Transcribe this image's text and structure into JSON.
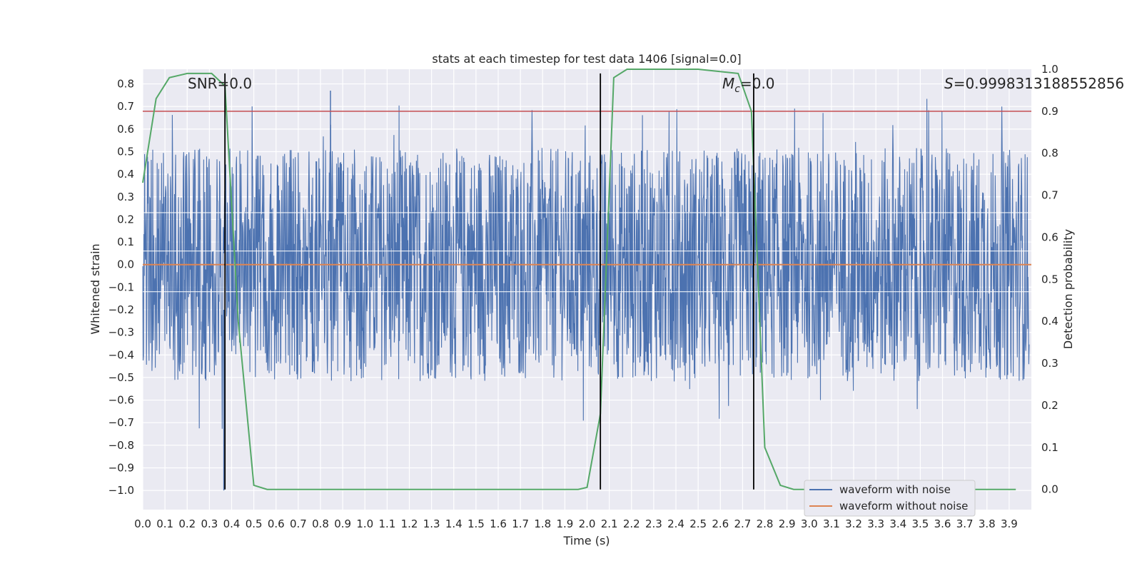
{
  "chart_data": {
    "type": "line",
    "title": "stats at each timestep for test data 1406 [signal=0.0]",
    "xlabel": "Time (s)",
    "ylabel": "Whitened strain",
    "y2label": "Detection probability",
    "xlim": [
      0.0,
      4.0
    ],
    "ylim": [
      -1.085,
      0.865
    ],
    "y2lim": [
      -0.048,
      1.0
    ],
    "x_ticks": [
      "0.0",
      "0.1",
      "0.2",
      "0.3",
      "0.4",
      "0.5",
      "0.6",
      "0.7",
      "0.8",
      "0.9",
      "1.0",
      "1.1",
      "1.2",
      "1.3",
      "1.4",
      "1.5",
      "1.6",
      "1.7",
      "1.8",
      "1.9",
      "2.0",
      "2.1",
      "2.2",
      "2.3",
      "2.4",
      "2.5",
      "2.6",
      "2.7",
      "2.8",
      "2.9",
      "3.0",
      "3.1",
      "3.2",
      "3.3",
      "3.4",
      "3.5",
      "3.6",
      "3.7",
      "3.8",
      "3.9"
    ],
    "y_ticks": [
      "0.8",
      "0.7",
      "0.6",
      "0.5",
      "0.4",
      "0.3",
      "0.2",
      "0.1",
      "0.0",
      "−0.1",
      "−0.2",
      "−0.3",
      "−0.4",
      "−0.5",
      "−0.6",
      "−0.7",
      "−0.8",
      "−0.9",
      "−1.0"
    ],
    "y2_ticks": [
      "1.0",
      "0.9",
      "0.8",
      "0.7",
      "0.6",
      "0.5",
      "0.4",
      "0.3",
      "0.2",
      "0.1",
      "0.0"
    ],
    "grid": true,
    "legend_placement": "lower right",
    "annotations": {
      "snr": "SNR=0.0",
      "mc_symbol": "M",
      "mc_sub": "c",
      "mc_value": "=0.0",
      "s_symbol": "S",
      "s_value": "=0.9998313188552856"
    },
    "series": [
      {
        "name": "waveform with noise",
        "color": "#4c72b0",
        "description": "dense noisy whitened strain, roughly -0.5 to 0.5 with spikes",
        "envelope": {
          "typical_low": -0.45,
          "typical_high": 0.45,
          "min": -1.0,
          "max": 0.77
        }
      },
      {
        "name": "waveform without noise",
        "color": "#dd8452",
        "y": 0.0
      },
      {
        "color": "#55a868",
        "axis": "right",
        "x": [
          0.0,
          0.06,
          0.12,
          0.2,
          0.25,
          0.31,
          0.37,
          0.43,
          0.5,
          0.56,
          0.62,
          1.0,
          1.5,
          1.9,
          1.96,
          2.0,
          2.06,
          2.12,
          2.18,
          2.5,
          2.68,
          2.74,
          2.8,
          2.87,
          2.93,
          3.0,
          3.5,
          3.93
        ],
        "y": [
          0.73,
          0.93,
          0.98,
          0.99,
          0.99,
          0.99,
          0.96,
          0.4,
          0.01,
          0.0,
          0.0,
          0.0,
          0.0,
          0.0,
          0.0,
          0.005,
          0.18,
          0.98,
          1.0,
          1.0,
          0.99,
          0.9,
          0.1,
          0.01,
          0.0,
          0.0,
          0.0,
          0.0
        ]
      }
    ],
    "threshold_line": {
      "axis": "right",
      "y": 0.9,
      "color": "#c44e52"
    },
    "vertical_lines": [
      0.37,
      2.06,
      2.75
    ],
    "white_bands": [
      0.23,
      0.06,
      -0.12
    ]
  }
}
